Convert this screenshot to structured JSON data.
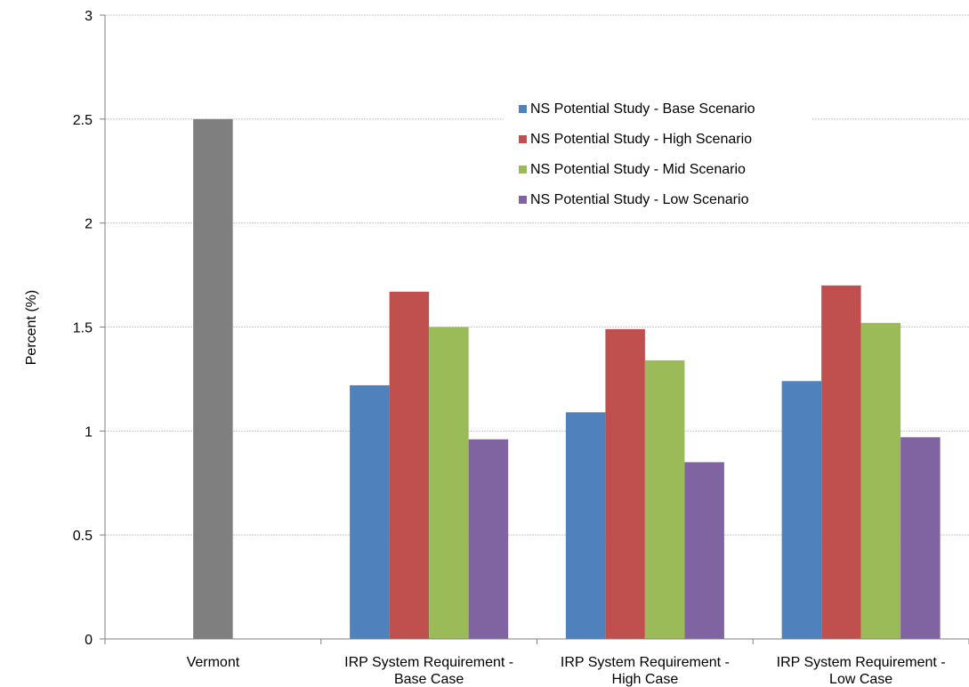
{
  "chart_data": {
    "type": "bar",
    "title": "",
    "xlabel": "",
    "ylabel": "Percent (%)",
    "ylim": [
      0,
      3
    ],
    "yticks": [
      "0",
      "0.5",
      "1",
      "1.5",
      "2",
      "2.5",
      "3"
    ],
    "grid": true,
    "legend_position": "top-right",
    "categories": [
      [
        "Vermont"
      ],
      [
        "IRP System Requirement -",
        "Base Case"
      ],
      [
        "IRP System Requirement -",
        "High Case"
      ],
      [
        "IRP System Requirement -",
        "Low Case"
      ]
    ],
    "vermont_bar": {
      "category": "Vermont",
      "value": 2.5,
      "color": "#7f7f7f"
    },
    "series": [
      {
        "name": "NS Potential Study - Base Scenario",
        "color": "#4f81bd",
        "values": [
          null,
          1.22,
          1.09,
          1.24
        ]
      },
      {
        "name": "NS Potential Study - High Scenario",
        "color": "#c0504d",
        "values": [
          null,
          1.67,
          1.49,
          1.7
        ]
      },
      {
        "name": "NS Potential Study - Mid Scenario",
        "color": "#9bbb59",
        "values": [
          null,
          1.5,
          1.34,
          1.52
        ]
      },
      {
        "name": "NS Potential Study - Low Scenario",
        "color": "#8064a2",
        "values": [
          null,
          0.96,
          0.85,
          0.97
        ]
      }
    ]
  }
}
